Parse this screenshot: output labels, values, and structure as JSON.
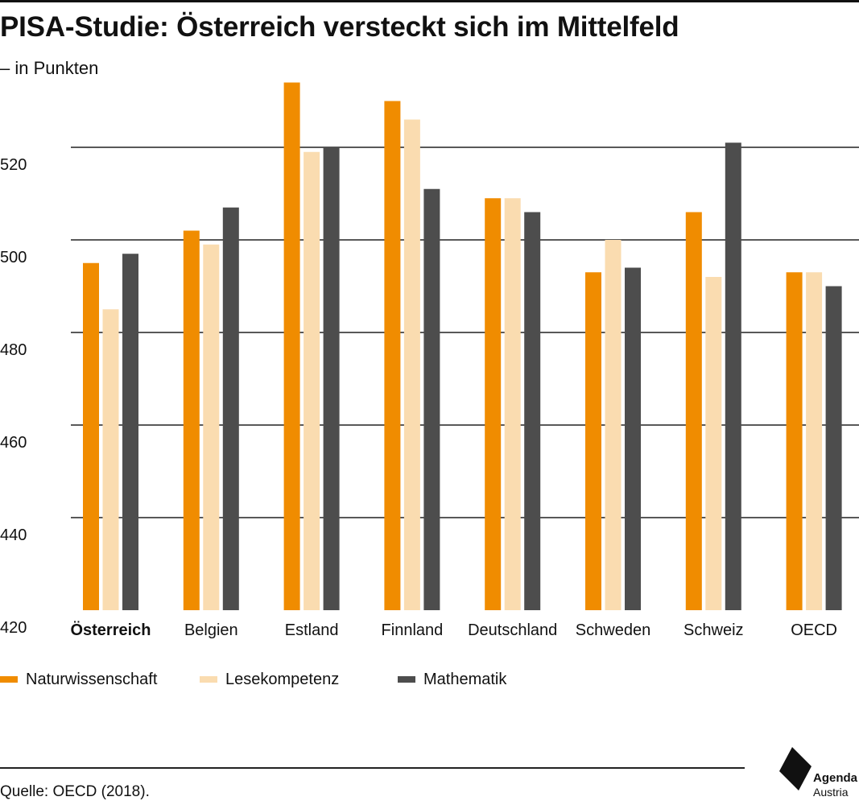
{
  "header": {
    "title": "PISA-Studie: Österreich versteckt sich im Mittelfeld",
    "subtitle": "– in Punkten"
  },
  "source": "Quelle: OECD (2018).",
  "logo": {
    "line1": "Agenda",
    "line2": "Austria"
  },
  "colors": {
    "naturwissenschaft": "#f08c00",
    "lesekompetenz": "#fadcb0",
    "mathematik": "#4d4d4d",
    "grid": "#222222",
    "text": "#111111"
  },
  "chart_data": {
    "type": "bar",
    "title": "PISA-Studie: Österreich versteckt sich im Mittelfeld",
    "subtitle": "– in Punkten",
    "ylim": [
      420,
      535
    ],
    "yticks": [
      420,
      440,
      460,
      480,
      500,
      520
    ],
    "grid": true,
    "legend_position": "bottom",
    "categories": [
      "Österreich",
      "Belgien",
      "Estland",
      "Finnland",
      "Deutschland",
      "Schweden",
      "Schweiz",
      "OECD"
    ],
    "highlight_category": "Österreich",
    "series": [
      {
        "name": "Naturwissenschaft",
        "color": "#f08c00",
        "values": [
          495,
          502,
          534,
          530,
          509,
          493,
          506,
          493
        ]
      },
      {
        "name": "Lesekompetenz",
        "color": "#fadcb0",
        "values": [
          485,
          499,
          519,
          526,
          509,
          500,
          492,
          493
        ]
      },
      {
        "name": "Mathematik",
        "color": "#4d4d4d",
        "values": [
          497,
          507,
          520,
          511,
          506,
          494,
          521,
          490
        ]
      }
    ]
  }
}
